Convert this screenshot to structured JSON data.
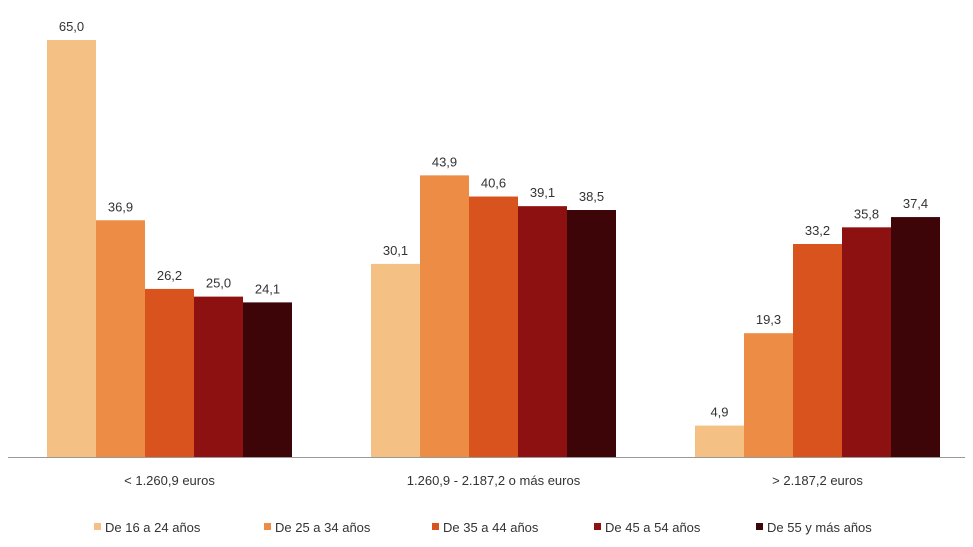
{
  "chart_data": {
    "type": "bar",
    "categories": [
      "< 1.260,9 euros",
      "1.260,9 - 2.187,2 o más euros",
      "> 2.187,2 euros"
    ],
    "series": [
      {
        "name": "De 16 a 24 años",
        "values": [
          65.0,
          30.1,
          4.9
        ],
        "labels": [
          "65,0",
          "30,1",
          "4,9"
        ],
        "color": "#F5C083"
      },
      {
        "name": "De 25 a 34 años",
        "values": [
          36.9,
          43.9,
          19.3
        ],
        "labels": [
          "36,9",
          "43,9",
          "19,3"
        ],
        "color": "#EC8C45"
      },
      {
        "name": "De 35 a 44 años",
        "values": [
          26.2,
          40.6,
          33.2
        ],
        "labels": [
          "26,2",
          "40,6",
          "33,2"
        ],
        "color": "#D9531E"
      },
      {
        "name": "De 45 a 54 años",
        "values": [
          25.0,
          39.1,
          35.8
        ],
        "labels": [
          "25,0",
          "39,1",
          "35,8"
        ],
        "color": "#8E1111"
      },
      {
        "name": "De 55 y más años",
        "values": [
          24.1,
          38.5,
          37.4
        ],
        "labels": [
          "24,1",
          "38,5",
          "37,4"
        ],
        "color": "#3E0508"
      }
    ],
    "ylim": [
      0,
      65
    ],
    "grid": false,
    "legend_position": "bottom",
    "axis_color": "#999999"
  }
}
